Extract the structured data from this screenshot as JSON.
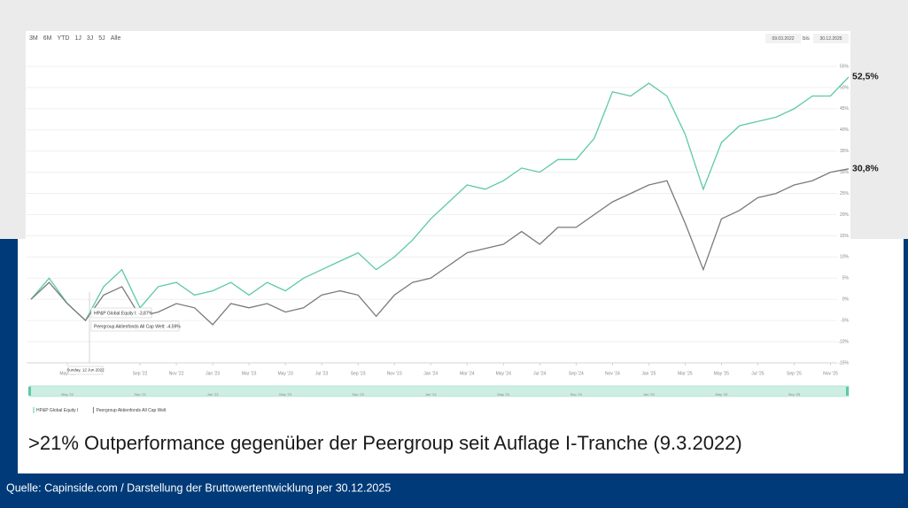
{
  "chart_data": {
    "type": "line",
    "range_buttons": [
      "3M",
      "6M",
      "YTD",
      "1J",
      "3J",
      "5J",
      "Alle"
    ],
    "date_from": "09.03.2022",
    "date_separator": "bis",
    "date_to": "30.12.2025",
    "x": [
      "2022-03",
      "2022-04",
      "2022-05",
      "2022-06",
      "2022-07",
      "2022-08",
      "2022-09",
      "2022-10",
      "2022-11",
      "2022-12",
      "2023-01",
      "2023-02",
      "2023-03",
      "2023-04",
      "2023-05",
      "2023-06",
      "2023-07",
      "2023-08",
      "2023-09",
      "2023-10",
      "2023-11",
      "2023-12",
      "2024-01",
      "2024-02",
      "2024-03",
      "2024-04",
      "2024-05",
      "2024-06",
      "2024-07",
      "2024-08",
      "2024-09",
      "2024-10",
      "2024-11",
      "2024-12",
      "2025-01",
      "2025-02",
      "2025-03",
      "2025-04",
      "2025-05",
      "2025-06",
      "2025-07",
      "2025-08",
      "2025-09",
      "2025-10",
      "2025-11",
      "2025-12"
    ],
    "series": [
      {
        "name": "HP&P Global Equity I",
        "color": "#5cc9a7",
        "values": [
          0,
          5,
          -1,
          -5,
          3,
          7,
          -2,
          3,
          4,
          1,
          2,
          4,
          1,
          4,
          2,
          5,
          7,
          9,
          11,
          7,
          10,
          14,
          19,
          23,
          27,
          26,
          28,
          31,
          30,
          33,
          33,
          38,
          49,
          48,
          51,
          48,
          39,
          26,
          37,
          41,
          42,
          43,
          45,
          48,
          48,
          52.5
        ],
        "value_labels": [
          null,
          null,
          null,
          null,
          null,
          null,
          null,
          null,
          null,
          null,
          null,
          null,
          null,
          null,
          null,
          null,
          null,
          null,
          null,
          null,
          null,
          null,
          null,
          null,
          null,
          null,
          null,
          null,
          null,
          null,
          null,
          null,
          null,
          null,
          null,
          null,
          null,
          null,
          null,
          null,
          null,
          null,
          null,
          null,
          null,
          "52,5%"
        ]
      },
      {
        "name": "Peergroup Aktienfonds All Cap Welt",
        "color": "#7a7a7a",
        "values": [
          0,
          4,
          -1,
          -5,
          1,
          3,
          -4,
          -3,
          -1,
          -2,
          -6,
          -1,
          -2,
          -1,
          -3,
          -2,
          1,
          2,
          1,
          -4,
          1,
          4,
          5,
          8,
          11,
          12,
          13,
          16,
          13,
          17,
          17,
          20,
          23,
          25,
          27,
          28,
          18,
          7,
          19,
          21,
          24,
          25,
          27,
          28,
          30,
          30.8
        ],
        "value_labels": [
          null,
          null,
          null,
          null,
          null,
          null,
          null,
          null,
          null,
          null,
          null,
          null,
          null,
          null,
          null,
          null,
          null,
          null,
          null,
          null,
          null,
          null,
          null,
          null,
          null,
          null,
          null,
          null,
          null,
          null,
          null,
          null,
          null,
          null,
          null,
          null,
          null,
          null,
          null,
          null,
          null,
          null,
          null,
          null,
          null,
          "30,8%"
        ]
      }
    ],
    "xlim": [
      "2022-03",
      "2025-12"
    ],
    "xticks": [
      {
        "value": "2022-05",
        "label": "May '22"
      },
      {
        "value": "2022-09",
        "label": "Sep '22"
      },
      {
        "value": "2022-11",
        "label": "Nov '22"
      },
      {
        "value": "2023-01",
        "label": "Jan '23"
      },
      {
        "value": "2023-03",
        "label": "Mar '23"
      },
      {
        "value": "2023-05",
        "label": "May '23"
      },
      {
        "value": "2023-07",
        "label": "Jul '23"
      },
      {
        "value": "2023-09",
        "label": "Sep '23"
      },
      {
        "value": "2023-11",
        "label": "Nov '23"
      },
      {
        "value": "2024-01",
        "label": "Jan '24"
      },
      {
        "value": "2024-03",
        "label": "Mar '24"
      },
      {
        "value": "2024-05",
        "label": "May '24"
      },
      {
        "value": "2024-07",
        "label": "Jul '24"
      },
      {
        "value": "2024-09",
        "label": "Sep '24"
      },
      {
        "value": "2024-11",
        "label": "Nov '24"
      },
      {
        "value": "2025-01",
        "label": "Jan '25"
      },
      {
        "value": "2025-03",
        "label": "Mar '25"
      },
      {
        "value": "2025-05",
        "label": "May '25"
      },
      {
        "value": "2025-07",
        "label": "Jul '25"
      },
      {
        "value": "2025-09",
        "label": "Sep '25"
      },
      {
        "value": "2025-11",
        "label": "Nov '25"
      }
    ],
    "navigator_xticks": [
      {
        "value": "2022-05",
        "label": "May '22"
      },
      {
        "value": "2022-09",
        "label": "Sep '22"
      },
      {
        "value": "2023-01",
        "label": "Jan '23"
      },
      {
        "value": "2023-05",
        "label": "May '23"
      },
      {
        "value": "2023-09",
        "label": "Sep '23"
      },
      {
        "value": "2024-01",
        "label": "Jan '24"
      },
      {
        "value": "2024-05",
        "label": "May '24"
      },
      {
        "value": "2024-09",
        "label": "Sep '24"
      },
      {
        "value": "2025-01",
        "label": "Jan '25"
      },
      {
        "value": "2025-05",
        "label": "May '25"
      },
      {
        "value": "2025-09",
        "label": "Sep '25"
      }
    ],
    "ylim": [
      -15,
      55
    ],
    "yticks": [
      {
        "value": 55,
        "label": "55%"
      },
      {
        "value": 50,
        "label": "50%"
      },
      {
        "value": 45,
        "label": "45%"
      },
      {
        "value": 40,
        "label": "40%"
      },
      {
        "value": 35,
        "label": "35%"
      },
      {
        "value": 30,
        "label": "30%"
      },
      {
        "value": 25,
        "label": "25%"
      },
      {
        "value": 20,
        "label": "20%"
      },
      {
        "value": 15,
        "label": "15%"
      },
      {
        "value": 10,
        "label": "10%"
      },
      {
        "value": 5,
        "label": "5%"
      },
      {
        "value": 0,
        "label": "0%"
      },
      {
        "value": -5,
        "label": "-5%"
      },
      {
        "value": -10,
        "label": "-10%"
      },
      {
        "value": -15,
        "label": "-15%"
      }
    ],
    "grid": true,
    "tooltip": {
      "series": [
        "HP&P Global Equity I: -3,87%",
        "Peergroup Aktienfonds All Cap Welt: -4,59%"
      ],
      "date": "Sunday, 12 Jun 2022"
    }
  },
  "headline": ">21% Outperformance gegenüber der Peergroup seit Auflage I-Tranche (9.3.2022)",
  "footer": "Quelle: Capinside.com / Darstellung der Bruttowertentwicklung per 30.12.2025"
}
